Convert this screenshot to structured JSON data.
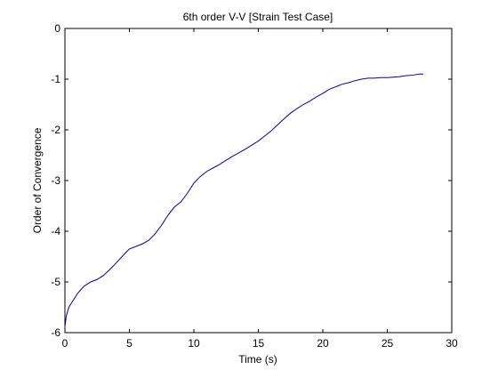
{
  "chart_data": {
    "type": "line",
    "title": "6th order V-V [Strain Test Case]",
    "xlabel": "Time (s)",
    "ylabel": "Order of Convergence",
    "xlim": [
      0,
      30
    ],
    "ylim": [
      -6,
      0
    ],
    "xticks": [
      0,
      5,
      10,
      15,
      20,
      25,
      30
    ],
    "yticks": [
      0,
      -1,
      -2,
      -3,
      -4,
      -5,
      -6
    ],
    "grid": false,
    "legend": "none",
    "series": [
      {
        "color": "#0000aa",
        "x": [
          0.02,
          0.1,
          0.3,
          0.6,
          1.0,
          1.5,
          2.0,
          2.5,
          3.0,
          3.5,
          4.0,
          4.5,
          5.0,
          5.5,
          6.0,
          6.5,
          7.0,
          7.5,
          8.0,
          8.5,
          9.0,
          9.5,
          10.0,
          10.5,
          11.0,
          11.5,
          12.0,
          12.5,
          13.0,
          13.5,
          14.0,
          14.5,
          15.0,
          15.5,
          16.0,
          16.5,
          17.0,
          17.5,
          18.0,
          18.5,
          19.0,
          19.5,
          20.0,
          20.5,
          21.0,
          21.5,
          22.0,
          22.5,
          23.0,
          23.5,
          24.0,
          24.5,
          25.0,
          25.5,
          26.0,
          26.5,
          27.0,
          27.5,
          27.8
        ],
        "values": [
          -5.85,
          -5.68,
          -5.5,
          -5.38,
          -5.22,
          -5.08,
          -5.0,
          -4.95,
          -4.87,
          -4.75,
          -4.62,
          -4.48,
          -4.35,
          -4.3,
          -4.25,
          -4.18,
          -4.05,
          -3.88,
          -3.68,
          -3.52,
          -3.42,
          -3.25,
          -3.05,
          -2.92,
          -2.82,
          -2.75,
          -2.68,
          -2.6,
          -2.52,
          -2.45,
          -2.38,
          -2.3,
          -2.22,
          -2.12,
          -2.02,
          -1.9,
          -1.78,
          -1.67,
          -1.58,
          -1.5,
          -1.43,
          -1.35,
          -1.28,
          -1.2,
          -1.15,
          -1.1,
          -1.07,
          -1.03,
          -1.0,
          -0.98,
          -0.98,
          -0.97,
          -0.97,
          -0.96,
          -0.95,
          -0.93,
          -0.92,
          -0.9,
          -0.9
        ]
      }
    ]
  }
}
